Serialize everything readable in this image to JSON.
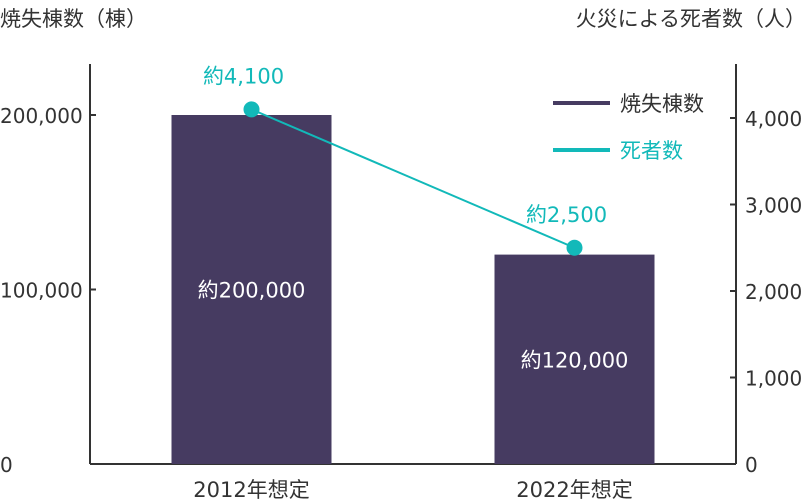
{
  "chart_data": {
    "type": "bar",
    "categories": [
      "2012年想定",
      "2022年想定"
    ],
    "left_axis": {
      "label": "焼失棟数（棟）",
      "ylim": [
        0,
        200000
      ],
      "ticks": [
        "0",
        "100,000",
        "200,000"
      ],
      "tick_values": [
        0,
        100000,
        200000
      ]
    },
    "right_axis": {
      "label": "火災による死者数（人）",
      "ylim": [
        0,
        4000
      ],
      "ticks": [
        "0",
        "1,000",
        "2,000",
        "3,000",
        "4,000"
      ],
      "tick_values": [
        0,
        1000,
        2000,
        3000,
        4000
      ]
    },
    "series": [
      {
        "name": "焼失棟数",
        "kind": "bar",
        "axis": "left",
        "color": "#463b61",
        "values": [
          200000,
          120000
        ],
        "labels": [
          "約200,000",
          "約120,000"
        ]
      },
      {
        "name": "死者数",
        "kind": "line",
        "axis": "right",
        "color": "#12b9b9",
        "values": [
          4100,
          2500
        ],
        "labels": [
          "約4,100",
          "約2,500"
        ]
      }
    ],
    "legend_position": "top-right",
    "grid": false
  }
}
